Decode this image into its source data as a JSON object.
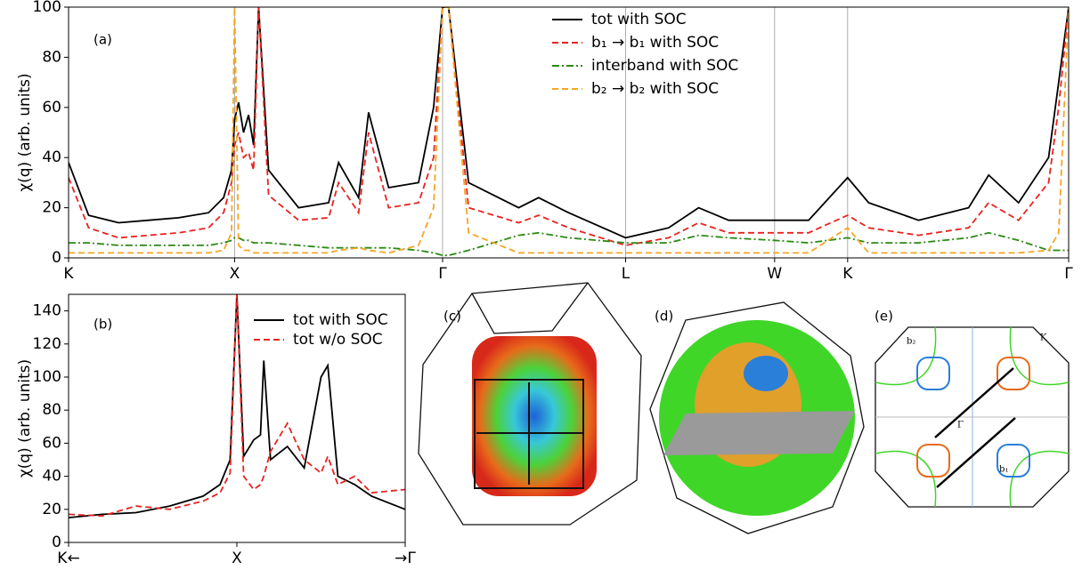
{
  "chart_data": [
    {
      "type": "line",
      "label": "(a)",
      "ylabel": "χ(q) (arb. units)",
      "x": [
        0,
        0.02,
        0.05,
        0.08,
        0.11,
        0.14,
        0.155,
        0.163,
        0.166,
        0.17,
        0.175,
        0.18,
        0.185,
        0.19,
        0.2,
        0.23,
        0.26,
        0.27,
        0.29,
        0.3,
        0.32,
        0.35,
        0.365,
        0.374,
        0.38,
        0.4,
        0.45,
        0.47,
        0.5,
        0.557,
        0.6,
        0.63,
        0.66,
        0.706,
        0.74,
        0.779,
        0.8,
        0.85,
        0.9,
        0.92,
        0.95,
        0.98,
        0.99,
        1.0
      ],
      "xlim": [
        0,
        1
      ],
      "ylim": [
        0,
        100
      ],
      "xticks": [
        {
          "value": 0,
          "label": "K"
        },
        {
          "value": 0.166,
          "label": "X"
        },
        {
          "value": 0.374,
          "label": "Γ"
        },
        {
          "value": 0.557,
          "label": "L"
        },
        {
          "value": 0.706,
          "label": "W"
        },
        {
          "value": 0.779,
          "label": "K"
        },
        {
          "value": 1.0,
          "label": "Γ"
        }
      ],
      "yticks": [
        0,
        20,
        40,
        60,
        80,
        100
      ],
      "grid": "x",
      "series": [
        {
          "name": "tot with SOC",
          "color": "#000000",
          "linestyle": "solid",
          "values": [
            38,
            17,
            14,
            15,
            16,
            18,
            24,
            35,
            55,
            62,
            50,
            57,
            45,
            100,
            35,
            20,
            22,
            38,
            24,
            58,
            28,
            30,
            60,
            100,
            100,
            30,
            20,
            24,
            18,
            8,
            12,
            20,
            15,
            15,
            15,
            32,
            22,
            15,
            20,
            33,
            22,
            40,
            70,
            100
          ]
        },
        {
          "name": "b₁ → b₁ with SOC",
          "color": "#e8231f",
          "linestyle": "dashed",
          "values": [
            32,
            12,
            8,
            9,
            10,
            12,
            18,
            30,
            45,
            50,
            40,
            42,
            35,
            100,
            25,
            15,
            16,
            30,
            18,
            50,
            20,
            22,
            40,
            100,
            100,
            20,
            14,
            17,
            12,
            5,
            8,
            14,
            10,
            10,
            10,
            17,
            12,
            9,
            12,
            22,
            15,
            30,
            60,
            100
          ]
        },
        {
          "name": "interband with SOC",
          "color": "#2a8a12",
          "linestyle": "dashdot",
          "values": [
            6,
            6,
            5,
            5,
            5,
            5,
            6,
            7,
            8,
            8,
            7,
            7,
            6,
            6,
            6,
            5,
            4,
            4,
            4,
            4,
            4,
            3,
            2,
            1,
            1,
            3,
            9,
            10,
            8,
            6,
            6,
            9,
            8,
            7,
            6,
            8,
            6,
            6,
            8,
            10,
            7,
            3,
            3,
            3
          ]
        },
        {
          "name": "b₂ → b₂ with SOC",
          "color": "#f5a623",
          "linestyle": "dashed",
          "values": [
            2,
            2,
            2,
            2,
            2,
            2,
            3,
            10,
            100,
            5,
            3,
            3,
            2,
            2,
            2,
            2,
            2,
            3,
            4,
            3,
            2,
            5,
            20,
            100,
            100,
            10,
            2,
            2,
            2,
            2,
            2,
            2,
            2,
            2,
            2,
            12,
            2,
            2,
            2,
            2,
            2,
            3,
            10,
            100
          ]
        }
      ]
    },
    {
      "type": "line",
      "label": "(b)",
      "ylabel": "χ(q) (arb. units)",
      "x": [
        0,
        0.1,
        0.2,
        0.3,
        0.4,
        0.45,
        0.48,
        0.5,
        0.52,
        0.55,
        0.57,
        0.58,
        0.6,
        0.65,
        0.7,
        0.75,
        0.77,
        0.8,
        0.85,
        0.9,
        1.0
      ],
      "xlim": [
        0,
        1
      ],
      "ylim": [
        0,
        150
      ],
      "xticks": [
        {
          "value": 0,
          "label": "K←"
        },
        {
          "value": 0.5,
          "label": "X"
        },
        {
          "value": 1,
          "label": "→Γ"
        }
      ],
      "yticks": [
        0,
        20,
        40,
        60,
        80,
        100,
        120,
        140
      ],
      "series": [
        {
          "name": "tot with SOC",
          "color": "#000000",
          "linestyle": "solid",
          "values": [
            15,
            17,
            18,
            22,
            28,
            35,
            50,
            150,
            52,
            62,
            65,
            110,
            50,
            58,
            45,
            100,
            107,
            40,
            35,
            28,
            20
          ]
        },
        {
          "name": "tot w/o SOC",
          "color": "#e8231f",
          "linestyle": "dashed",
          "values": [
            17,
            16,
            22,
            20,
            25,
            30,
            42,
            150,
            40,
            32,
            35,
            40,
            55,
            72,
            50,
            42,
            52,
            35,
            40,
            30,
            32
          ]
        }
      ]
    }
  ],
  "insets": [
    {
      "label": "(c)"
    },
    {
      "label": "(d)"
    },
    {
      "label": "(e)",
      "annotations": [
        "b₂",
        "K",
        "Γ",
        "b₁"
      ]
    }
  ]
}
